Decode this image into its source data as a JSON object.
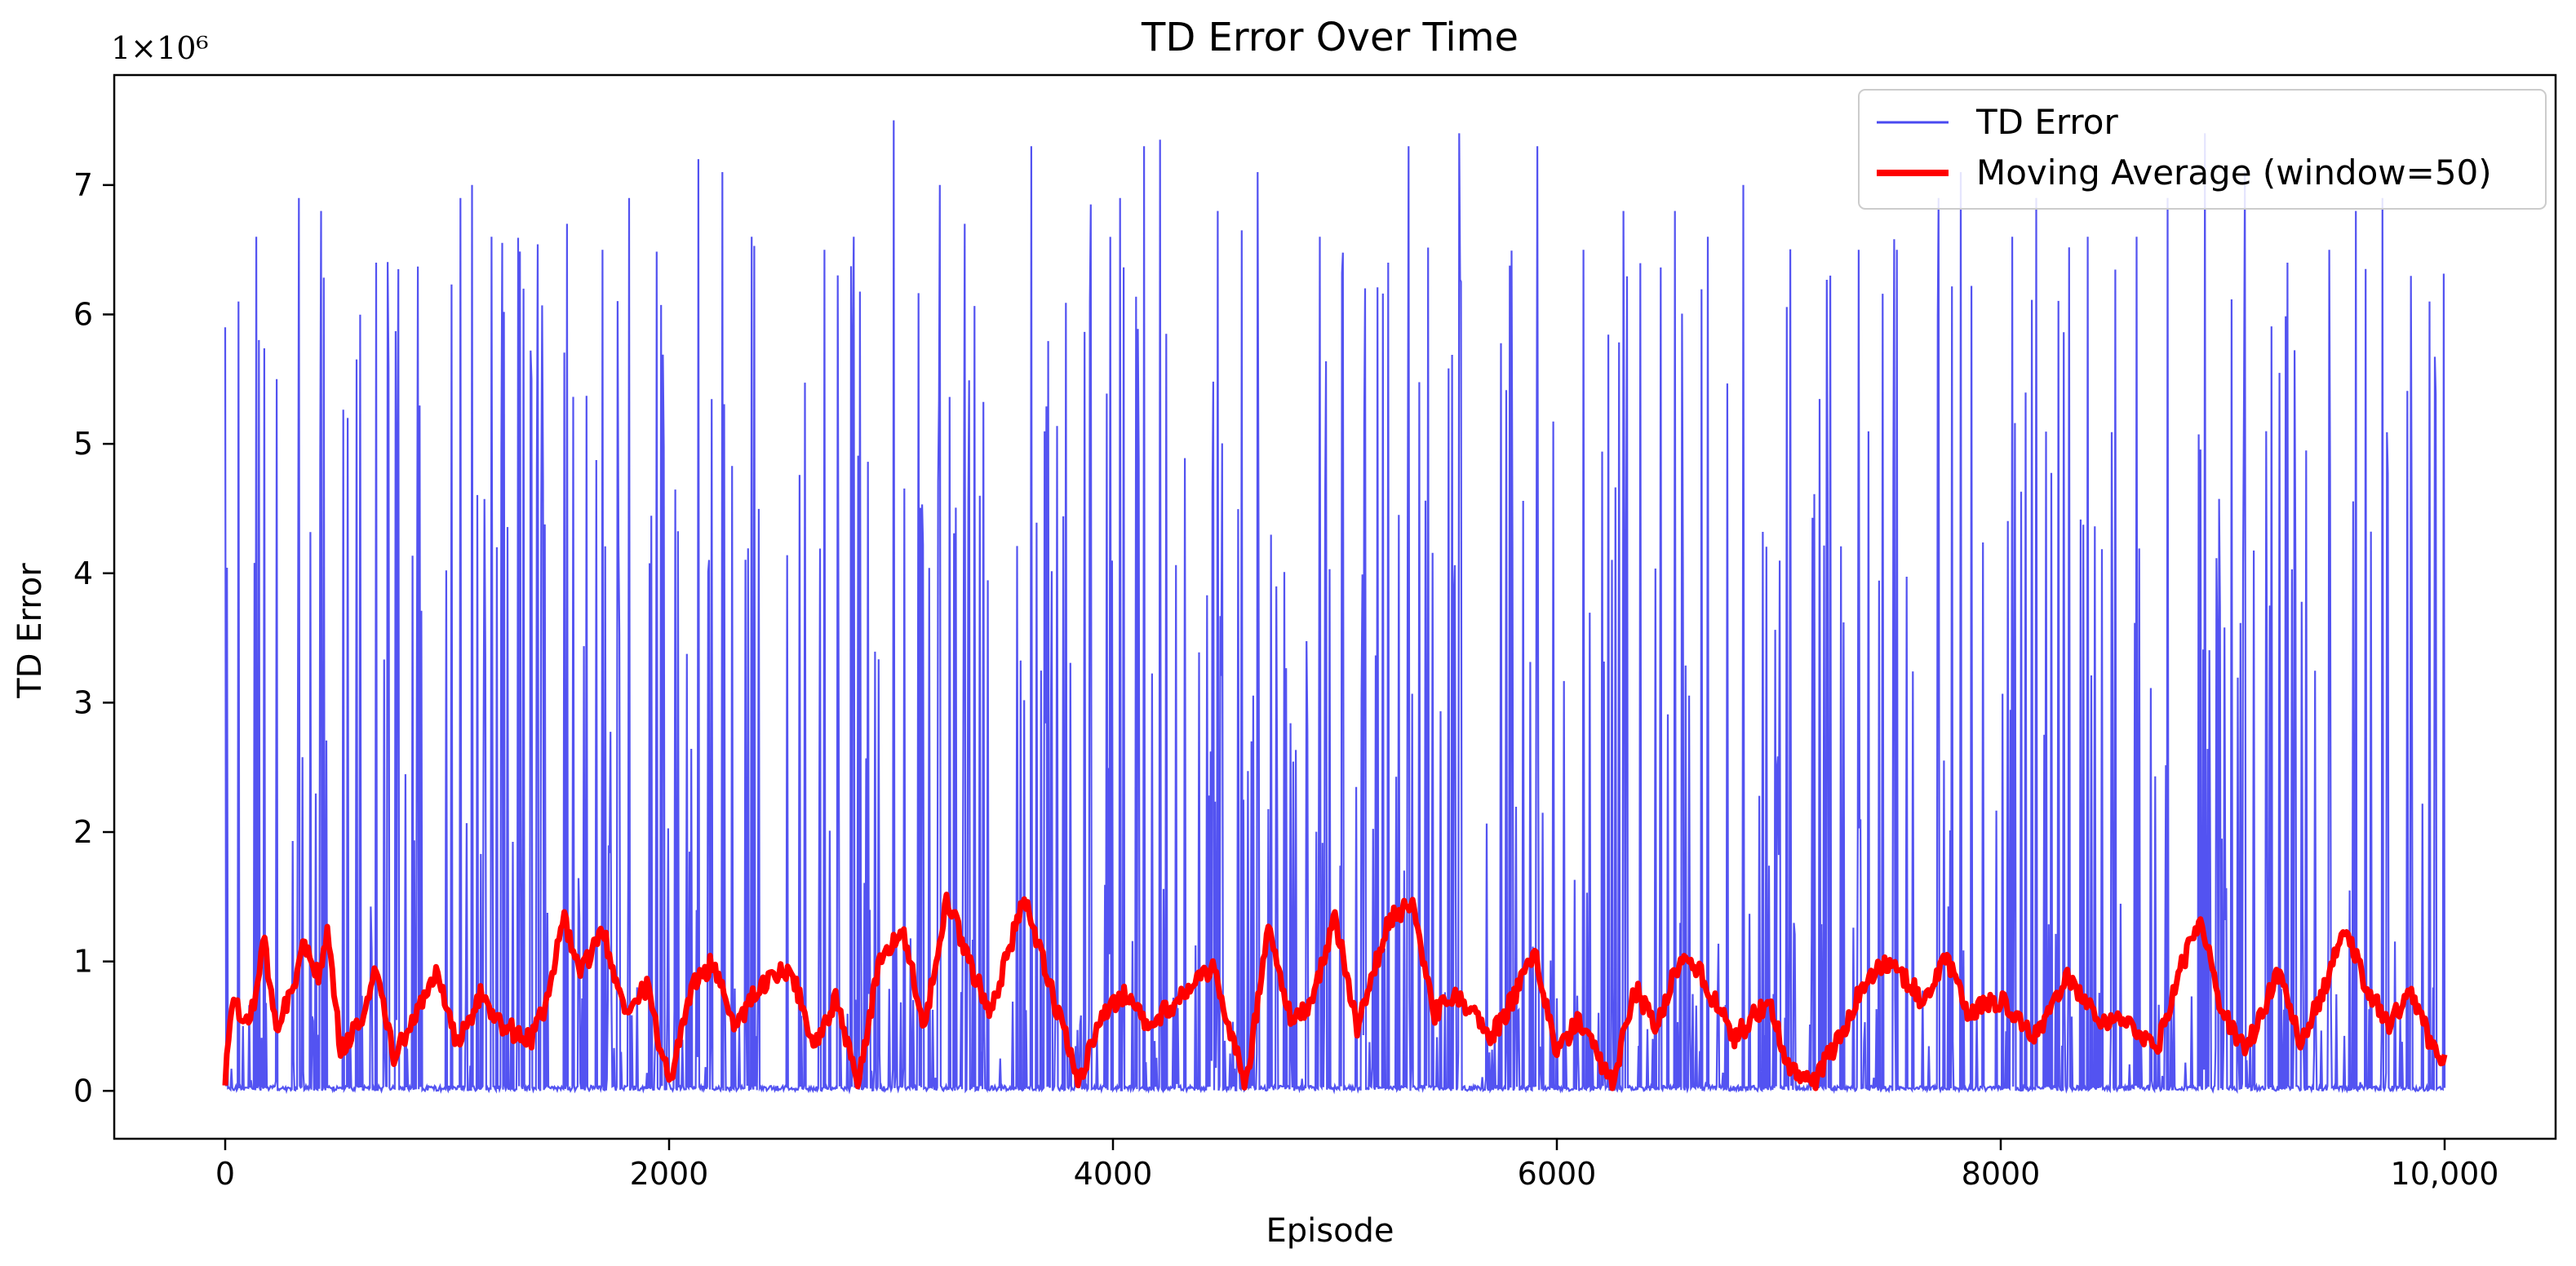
{
  "chart_data": {
    "type": "line",
    "title": "TD Error Over Time",
    "xlabel": "Episode",
    "ylabel": "TD Error",
    "y_offset_label": "1×10⁶",
    "y_multiplier": 1000000,
    "xlim": [
      -500,
      10500
    ],
    "ylim": [
      -0.37,
      7.85
    ],
    "x_ticks": [
      0,
      2000,
      4000,
      6000,
      8000,
      10000
    ],
    "x_tick_labels": [
      "0",
      "2000",
      "4000",
      "6000",
      "8000",
      "10,000"
    ],
    "y_ticks": [
      0,
      1,
      2,
      3,
      4,
      5,
      6,
      7
    ],
    "y_tick_labels": [
      "0",
      "1",
      "2",
      "3",
      "4",
      "5",
      "6",
      "7"
    ],
    "legend_position": "top-right",
    "grid": false,
    "num_episodes": 10000,
    "series": [
      {
        "name": "TD Error",
        "color": "#4a4af0",
        "style": "thin-line",
        "approx_peak_values_millions": [
          [
            0,
            5.9
          ],
          [
            60,
            6.1
          ],
          [
            140,
            6.6
          ],
          [
            230,
            5.5
          ],
          [
            330,
            6.9
          ],
          [
            430,
            6.8
          ],
          [
            550,
            5.2
          ],
          [
            680,
            6.4
          ],
          [
            780,
            6.35
          ],
          [
            1060,
            6.9
          ],
          [
            1110,
            7.0
          ],
          [
            1200,
            6.6
          ],
          [
            1380,
            5.5
          ],
          [
            1540,
            6.7
          ],
          [
            1700,
            6.5
          ],
          [
            1820,
            6.9
          ],
          [
            2130,
            7.2
          ],
          [
            2240,
            7.1
          ],
          [
            2370,
            6.6
          ],
          [
            2700,
            6.5
          ],
          [
            2830,
            6.6
          ],
          [
            3010,
            7.5
          ],
          [
            3220,
            7.0
          ],
          [
            3330,
            6.7
          ],
          [
            3630,
            7.3
          ],
          [
            3900,
            6.85
          ],
          [
            4030,
            6.9
          ],
          [
            4140,
            7.3
          ],
          [
            4210,
            7.35
          ],
          [
            4470,
            6.8
          ],
          [
            4580,
            6.65
          ],
          [
            4650,
            7.1
          ],
          [
            4930,
            6.6
          ],
          [
            5240,
            6.4
          ],
          [
            5330,
            7.3
          ],
          [
            5560,
            7.4
          ],
          [
            5910,
            7.3
          ],
          [
            6120,
            6.5
          ],
          [
            6300,
            6.8
          ],
          [
            6530,
            6.8
          ],
          [
            6680,
            6.6
          ],
          [
            6840,
            7.0
          ],
          [
            7230,
            6.3
          ],
          [
            7360,
            6.5
          ],
          [
            7530,
            6.5
          ],
          [
            7720,
            6.9
          ],
          [
            7820,
            7.1
          ],
          [
            8050,
            6.6
          ],
          [
            8160,
            6.9
          ],
          [
            8390,
            6.6
          ],
          [
            8610,
            6.6
          ],
          [
            8750,
            6.9
          ],
          [
            8920,
            7.4
          ],
          [
            9100,
            7.1
          ],
          [
            9290,
            6.4
          ],
          [
            9480,
            6.5
          ],
          [
            9600,
            6.8
          ],
          [
            9720,
            6.9
          ],
          [
            9930,
            6.1
          ]
        ]
      },
      {
        "name": "Moving Average (window=50)",
        "color": "#ff0000",
        "style": "thick-line",
        "window": 50,
        "approx_values_millions": [
          [
            0,
            0.05
          ],
          [
            30,
            0.7
          ],
          [
            80,
            0.55
          ],
          [
            130,
            0.65
          ],
          [
            170,
            1.2
          ],
          [
            230,
            0.5
          ],
          [
            300,
            0.75
          ],
          [
            350,
            1.1
          ],
          [
            420,
            0.9
          ],
          [
            460,
            1.25
          ],
          [
            520,
            0.3
          ],
          [
            600,
            0.5
          ],
          [
            680,
            0.95
          ],
          [
            760,
            0.25
          ],
          [
            850,
            0.55
          ],
          [
            950,
            0.9
          ],
          [
            1050,
            0.35
          ],
          [
            1150,
            0.75
          ],
          [
            1250,
            0.5
          ],
          [
            1380,
            0.4
          ],
          [
            1450,
            0.7
          ],
          [
            1520,
            1.35
          ],
          [
            1600,
            0.9
          ],
          [
            1700,
            1.25
          ],
          [
            1800,
            0.6
          ],
          [
            1900,
            0.8
          ],
          [
            2000,
            0.05
          ],
          [
            2100,
            0.8
          ],
          [
            2200,
            1.0
          ],
          [
            2300,
            0.5
          ],
          [
            2400,
            0.8
          ],
          [
            2550,
            0.95
          ],
          [
            2650,
            0.35
          ],
          [
            2750,
            0.7
          ],
          [
            2850,
            0.05
          ],
          [
            2950,
            1.0
          ],
          [
            3050,
            1.25
          ],
          [
            3150,
            0.5
          ],
          [
            3250,
            1.5
          ],
          [
            3350,
            1.0
          ],
          [
            3450,
            0.6
          ],
          [
            3600,
            1.5
          ],
          [
            3700,
            0.9
          ],
          [
            3850,
            0.05
          ],
          [
            3950,
            0.6
          ],
          [
            4050,
            0.75
          ],
          [
            4150,
            0.5
          ],
          [
            4300,
            0.7
          ],
          [
            4450,
            0.95
          ],
          [
            4600,
            0.05
          ],
          [
            4700,
            1.25
          ],
          [
            4800,
            0.55
          ],
          [
            4900,
            0.7
          ],
          [
            5000,
            1.35
          ],
          [
            5100,
            0.5
          ],
          [
            5250,
            1.35
          ],
          [
            5350,
            1.45
          ],
          [
            5450,
            0.6
          ],
          [
            5550,
            0.75
          ],
          [
            5700,
            0.4
          ],
          [
            5800,
            0.7
          ],
          [
            5900,
            1.1
          ],
          [
            6000,
            0.3
          ],
          [
            6100,
            0.55
          ],
          [
            6250,
            0.05
          ],
          [
            6350,
            0.8
          ],
          [
            6450,
            0.5
          ],
          [
            6550,
            1.0
          ],
          [
            6650,
            0.9
          ],
          [
            6800,
            0.4
          ],
          [
            6950,
            0.7
          ],
          [
            7050,
            0.15
          ],
          [
            7150,
            0.05
          ],
          [
            7300,
            0.5
          ],
          [
            7400,
            0.9
          ],
          [
            7500,
            1.0
          ],
          [
            7650,
            0.7
          ],
          [
            7750,
            1.05
          ],
          [
            7850,
            0.6
          ],
          [
            8000,
            0.7
          ],
          [
            8150,
            0.4
          ],
          [
            8300,
            0.9
          ],
          [
            8450,
            0.5
          ],
          [
            8550,
            0.6
          ],
          [
            8700,
            0.3
          ],
          [
            8800,
            0.9
          ],
          [
            8900,
            1.35
          ],
          [
            9000,
            0.6
          ],
          [
            9100,
            0.3
          ],
          [
            9250,
            0.9
          ],
          [
            9350,
            0.4
          ],
          [
            9450,
            0.75
          ],
          [
            9550,
            1.25
          ],
          [
            9650,
            0.8
          ],
          [
            9750,
            0.5
          ],
          [
            9850,
            0.8
          ],
          [
            9950,
            0.3
          ],
          [
            10000,
            0.28
          ]
        ]
      }
    ]
  }
}
